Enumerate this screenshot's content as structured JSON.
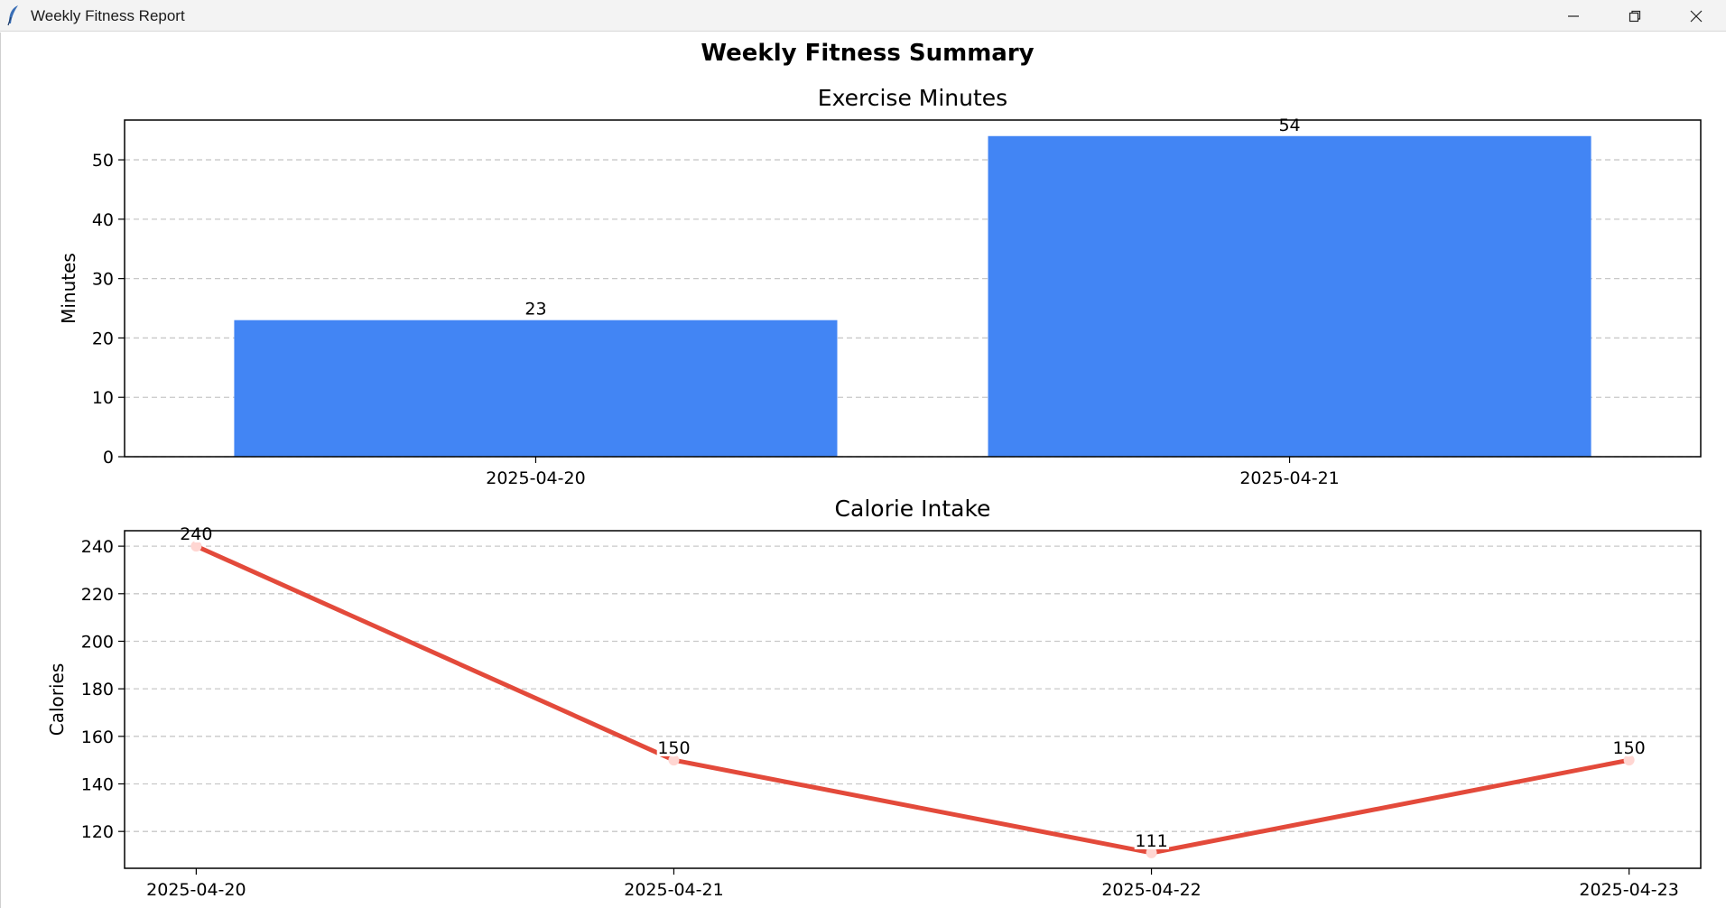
{
  "window": {
    "title": "Weekly Fitness Report",
    "icon": "feather-icon",
    "controls": [
      "minimize-icon",
      "restore-icon",
      "close-icon"
    ]
  },
  "figure": {
    "suptitle": "Weekly Fitness Summary"
  },
  "chart_data": [
    {
      "type": "bar",
      "title": "Exercise Minutes",
      "xlabel": "",
      "ylabel": "Minutes",
      "categories": [
        "2025-04-20",
        "2025-04-21"
      ],
      "values": [
        23,
        54
      ],
      "data_labels": [
        "23",
        "54"
      ],
      "ylim": [
        0,
        56.7
      ],
      "yticks": [
        0,
        10,
        20,
        30,
        40,
        50
      ],
      "grid": "y-dashed",
      "color": "#4285f4"
    },
    {
      "type": "line",
      "title": "Calorie Intake",
      "xlabel": "",
      "ylabel": "Calories",
      "categories": [
        "2025-04-20",
        "2025-04-21",
        "2025-04-22",
        "2025-04-23"
      ],
      "values": [
        240,
        150,
        111,
        150
      ],
      "data_labels": [
        "240",
        "150",
        "111",
        "150"
      ],
      "ylim": [
        104.5,
        246.5
      ],
      "yticks": [
        120,
        140,
        160,
        180,
        200,
        220,
        240
      ],
      "grid": "y-dashed",
      "color": "#e34a3b",
      "marker_color": "#ffd6d2"
    }
  ]
}
